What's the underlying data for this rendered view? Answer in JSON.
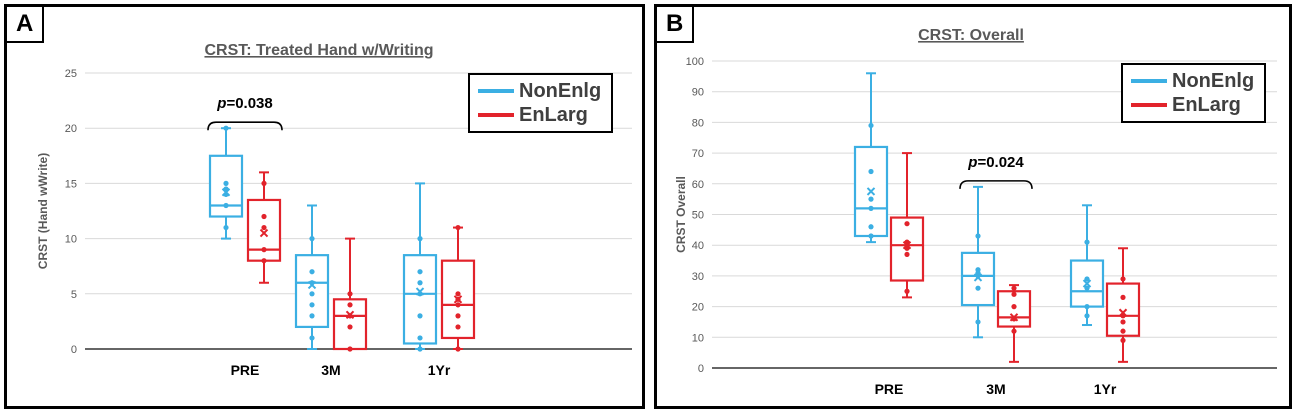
{
  "colors": {
    "nonenlg": "#3BAFE3",
    "enlarg": "#E2232B"
  },
  "panels": {
    "a": {
      "label": "A"
    },
    "b": {
      "label": "B"
    }
  },
  "chart_data": [
    {
      "type": "boxplot",
      "panel_label": "A",
      "title": "CRST: Treated Hand w/Writing",
      "ylabel": "CRST (Hand wWrite)",
      "ylim": [
        0,
        25
      ],
      "yticks": [
        0,
        5,
        10,
        15,
        20,
        25
      ],
      "categories": [
        "PRE",
        "3M",
        "1Yr"
      ],
      "grid": true,
      "legend": {
        "position": "top-right",
        "entries": [
          "NonEnlg",
          "EnLarg"
        ]
      },
      "series": [
        {
          "name": "NonEnlg",
          "color": "#3BAFE3",
          "boxes": [
            {
              "category": "PRE",
              "min": 10,
              "q1": 12,
              "median": 13,
              "q3": 17.5,
              "max": 20,
              "mean": 14.2,
              "points": [
                11,
                13,
                14,
                14.5,
                15,
                20
              ]
            },
            {
              "category": "3M",
              "min": 0,
              "q1": 2,
              "median": 6,
              "q3": 8.5,
              "max": 13,
              "mean": 5.8,
              "points": [
                1,
                3,
                4,
                5,
                6,
                7,
                10
              ]
            },
            {
              "category": "1Yr",
              "min": 0,
              "q1": 0.5,
              "median": 5,
              "q3": 8.5,
              "max": 15,
              "mean": 5.2,
              "points": [
                0,
                1,
                3,
                5,
                6,
                7,
                10
              ]
            }
          ]
        },
        {
          "name": "EnLarg",
          "color": "#E2232B",
          "boxes": [
            {
              "category": "PRE",
              "min": 6,
              "q1": 8,
              "median": 9,
              "q3": 13.5,
              "max": 16,
              "mean": 10.5,
              "points": [
                8,
                9,
                11,
                12,
                15
              ]
            },
            {
              "category": "3M",
              "min": 0,
              "q1": 0,
              "median": 3,
              "q3": 4.5,
              "max": 10,
              "mean": 3.1,
              "points": [
                0,
                2,
                3,
                4,
                5
              ]
            },
            {
              "category": "1Yr",
              "min": 0,
              "q1": 1,
              "median": 4,
              "q3": 8,
              "max": 11,
              "mean": 4.5,
              "points": [
                0,
                2,
                3,
                4,
                4.5,
                5,
                11
              ]
            }
          ]
        }
      ],
      "annotations": [
        {
          "text_prefix": "p",
          "text_value": "=0.038",
          "category": "PRE",
          "y": 20
        }
      ]
    },
    {
      "type": "boxplot",
      "panel_label": "B",
      "title": "CRST: Overall",
      "ylabel": "CRST Overall",
      "ylim": [
        0,
        100
      ],
      "yticks": [
        0,
        10,
        20,
        30,
        40,
        50,
        60,
        70,
        80,
        90,
        100
      ],
      "categories": [
        "PRE",
        "3M",
        "1Yr"
      ],
      "grid": true,
      "legend": {
        "position": "top-right",
        "entries": [
          "NonEnlg",
          "EnLarg"
        ]
      },
      "series": [
        {
          "name": "NonEnlg",
          "color": "#3BAFE3",
          "boxes": [
            {
              "category": "PRE",
              "min": 41,
              "q1": 43,
              "median": 52,
              "q3": 72,
              "max": 96,
              "mean": 57.5,
              "points": [
                43,
                46,
                52,
                55,
                64,
                79
              ]
            },
            {
              "category": "3M",
              "min": 10,
              "q1": 20.5,
              "median": 30,
              "q3": 37.5,
              "max": 59,
              "mean": 29.5,
              "points": [
                15,
                26,
                30,
                31,
                32,
                43
              ]
            },
            {
              "category": "1Yr",
              "min": 14,
              "q1": 20,
              "median": 25,
              "q3": 35,
              "max": 53,
              "mean": 27.5,
              "points": [
                17,
                20,
                26,
                29,
                41
              ]
            }
          ]
        },
        {
          "name": "EnLarg",
          "color": "#E2232B",
          "boxes": [
            {
              "category": "PRE",
              "min": 23,
              "q1": 28.5,
              "median": 40,
              "q3": 49,
              "max": 70,
              "mean": 40,
              "points": [
                25,
                37,
                39,
                41,
                47
              ]
            },
            {
              "category": "3M",
              "min": 2,
              "q1": 13.5,
              "median": 16.5,
              "q3": 25,
              "max": 27,
              "mean": 16.5,
              "points": [
                12,
                16,
                20,
                24,
                26
              ]
            },
            {
              "category": "1Yr",
              "min": 2,
              "q1": 10.5,
              "median": 17,
              "q3": 27.5,
              "max": 39,
              "mean": 18,
              "points": [
                9,
                12,
                15,
                17,
                23,
                29
              ]
            }
          ]
        }
      ],
      "annotations": [
        {
          "text_prefix": "p",
          "text_value": "=0.024",
          "category": "3M",
          "y": 59
        }
      ]
    }
  ]
}
